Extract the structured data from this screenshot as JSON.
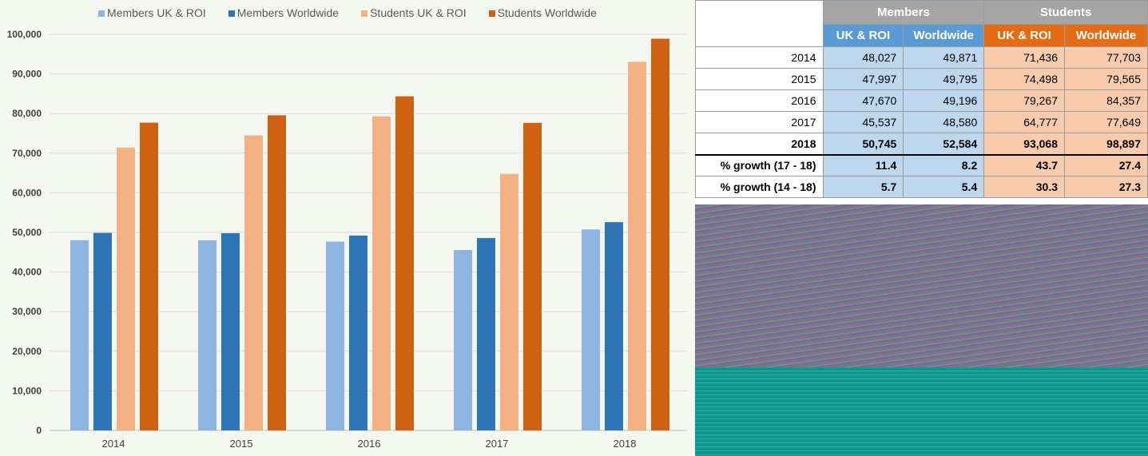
{
  "chart_data": {
    "type": "bar",
    "categories": [
      "2014",
      "2015",
      "2016",
      "2017",
      "2018"
    ],
    "series": [
      {
        "name": "Members UK & ROI",
        "color": "#8db4e2",
        "values": [
          48027,
          47997,
          47670,
          45537,
          50745
        ]
      },
      {
        "name": "Members Worldwide",
        "color": "#2e75b6",
        "values": [
          49871,
          49795,
          49196,
          48580,
          52584
        ]
      },
      {
        "name": "Students UK & ROI",
        "color": "#f4b183",
        "values": [
          71436,
          74498,
          79267,
          64777,
          93068
        ]
      },
      {
        "name": "Students Worldwide",
        "color": "#d06012",
        "values": [
          77703,
          79565,
          84357,
          77649,
          98897
        ]
      }
    ],
    "ylim": [
      0,
      100000
    ],
    "yticks": [
      "0",
      "10,000",
      "20,000",
      "30,000",
      "40,000",
      "50,000",
      "60,000",
      "70,000",
      "80,000",
      "90,000",
      "100,000"
    ],
    "grid": true,
    "legend": "top"
  },
  "table": {
    "groups": [
      "Members",
      "Students"
    ],
    "subheaders": [
      "UK & ROI",
      "Worldwide",
      "UK & ROI",
      "Worldwide"
    ],
    "rows": [
      {
        "label": "2014",
        "values": [
          "48,027",
          "49,871",
          "71,436",
          "77,703"
        ]
      },
      {
        "label": "2015",
        "values": [
          "47,997",
          "49,795",
          "74,498",
          "79,565"
        ]
      },
      {
        "label": "2016",
        "values": [
          "47,670",
          "49,196",
          "79,267",
          "84,357"
        ]
      },
      {
        "label": "2017",
        "values": [
          "45,537",
          "48,580",
          "64,777",
          "77,649"
        ]
      },
      {
        "label": "2018",
        "values": [
          "50,745",
          "52,584",
          "93,068",
          "98,897"
        ]
      },
      {
        "label": "% growth (17 - 18)",
        "values": [
          "11.4",
          "8.2",
          "43.7",
          "27.4"
        ]
      },
      {
        "label": "% growth (14 - 18)",
        "values": [
          "5.7",
          "5.4",
          "30.3",
          "27.3"
        ]
      }
    ]
  }
}
